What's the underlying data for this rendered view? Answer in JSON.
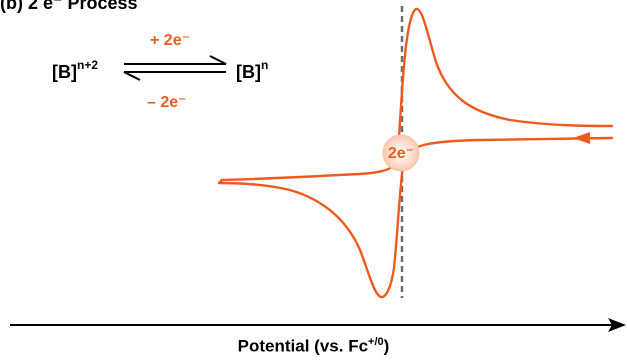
{
  "figure": {
    "label": "(b) 2 e⁻ Process",
    "accent_color": "#F05A1E",
    "text_color": "#000000"
  },
  "equilibrium": {
    "oxidized_base": "[B]",
    "oxidized_charge": "n+2",
    "reduced_base": "[B]",
    "reduced_charge": "n",
    "forward_label": "+ 2e⁻",
    "reverse_label": "– 2e⁻"
  },
  "voltammogram": {
    "electron_badge": "2e⁻",
    "axis_label_base": "Potential (vs. Fc",
    "axis_label_sup": "+/0",
    "axis_label_end": ")"
  }
}
